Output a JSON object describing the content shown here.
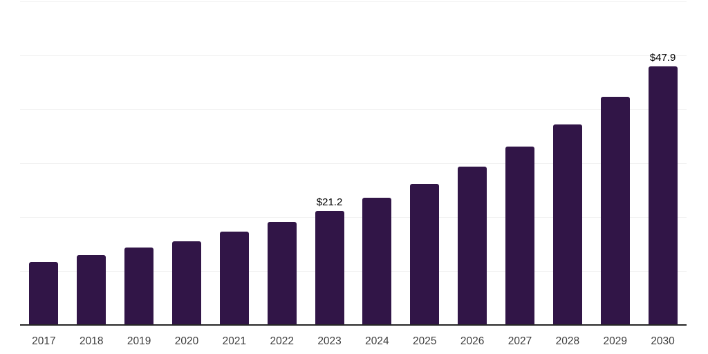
{
  "chart_data": {
    "type": "bar",
    "title": "",
    "xlabel": "",
    "ylabel": "",
    "categories": [
      "2017",
      "2018",
      "2019",
      "2020",
      "2021",
      "2022",
      "2023",
      "2024",
      "2025",
      "2026",
      "2027",
      "2028",
      "2029",
      "2030"
    ],
    "values": [
      11.7,
      12.9,
      14.3,
      15.5,
      17.3,
      19.1,
      21.2,
      23.6,
      26.2,
      29.4,
      33.1,
      37.2,
      42.3,
      47.9
    ],
    "value_labels": [
      "",
      "",
      "",
      "",
      "",
      "",
      "$21.2",
      "",
      "",
      "",
      "",
      "",
      "",
      "$47.9"
    ],
    "ylim": [
      0,
      60
    ],
    "gridline_step": 10,
    "grid": "horizontal",
    "legend": "none",
    "y_axis_labels_visible": false
  },
  "colors": {
    "bar": "#311547",
    "axis_line": "#262626",
    "gridline": "#f2f2f2",
    "value_label": "#000000",
    "tick_label": "#3d3d3d",
    "background": "#ffffff"
  }
}
